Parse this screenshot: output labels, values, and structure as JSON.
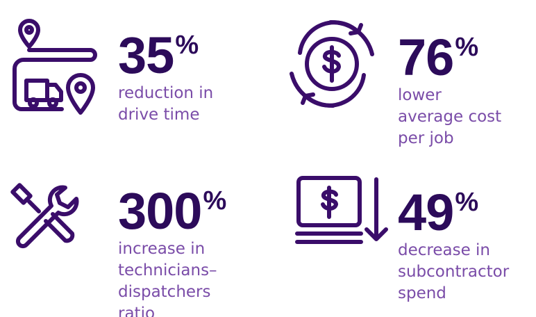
{
  "stats": [
    {
      "number": "35",
      "suffix": "%",
      "lines": [
        "reduction in",
        "drive time"
      ]
    },
    {
      "number": "76",
      "suffix": "%",
      "lines": [
        "lower",
        "average cost",
        "per job"
      ]
    },
    {
      "number": "300",
      "suffix": "%",
      "lines": [
        "increase in",
        "technicians–",
        "dispatchers",
        "ratio"
      ]
    },
    {
      "number": "49",
      "suffix": "%",
      "lines": [
        "decrease in",
        "subcontractor",
        "spend"
      ]
    }
  ]
}
